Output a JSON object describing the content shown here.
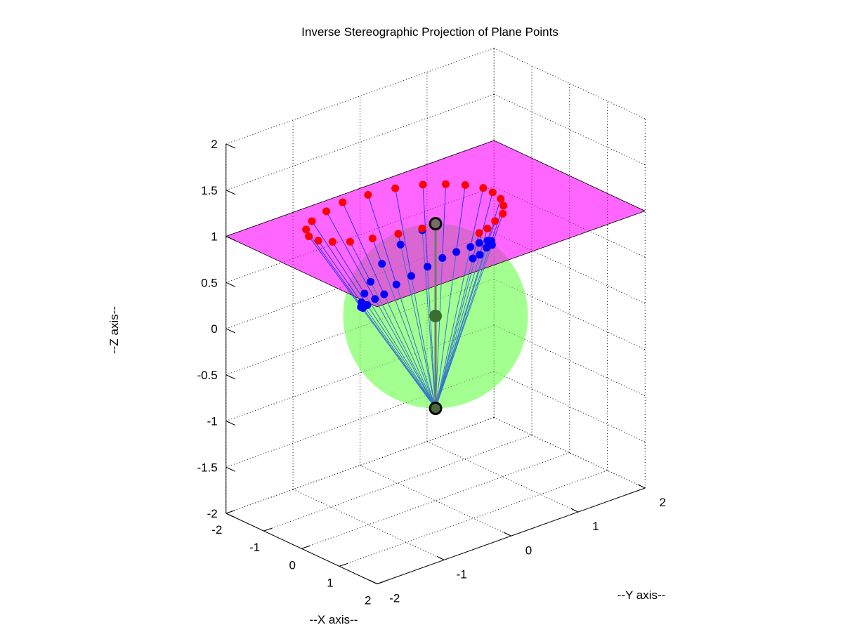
{
  "chart_data": {
    "type": "scatter",
    "projection": "3d",
    "title": "Inverse Stereographic Projection of Plane Points",
    "xlabel": "--X axis--",
    "ylabel": "--Y axis--",
    "zlabel": "--Z axis--",
    "xlim": [
      -2,
      2
    ],
    "ylim": [
      -2,
      2
    ],
    "zlim": [
      -2,
      2
    ],
    "x_ticks": [
      "-2",
      "-1",
      "0",
      "1",
      "2"
    ],
    "y_ticks": [
      "-2",
      "-1",
      "0",
      "1",
      "2"
    ],
    "z_ticks": [
      "-2",
      "-1.5",
      "-1",
      "-0.5",
      "0",
      "0.5",
      "1",
      "1.5",
      "2"
    ],
    "grid": true,
    "colors": {
      "plane": "#ff00ff",
      "sphere": "#66ff44",
      "plane_points": "#ff0000",
      "sphere_points": "#0000ff",
      "rays_to_plane": "#3333ff",
      "rays_to_pole": "#3377cc",
      "poles": "#000000",
      "center": "#3a6e2c"
    },
    "plane": {
      "z": 1,
      "x_range": [
        -2,
        2
      ],
      "y_range": [
        -2,
        2
      ]
    },
    "sphere": {
      "center": [
        0,
        0,
        0
      ],
      "radius": 1
    },
    "projection_pole": [
      0,
      0,
      -1
    ],
    "north_pole": [
      0,
      0,
      1
    ],
    "plane_points": [
      [
        0.0,
        -0.2,
        1
      ],
      [
        -0.1,
        -0.5,
        1
      ],
      [
        -0.25,
        -0.8,
        1
      ],
      [
        -0.4,
        -1.05,
        1
      ],
      [
        -0.6,
        -1.2,
        1
      ],
      [
        -0.8,
        -1.3,
        1
      ],
      [
        -1.05,
        -1.3,
        1
      ],
      [
        -1.3,
        -1.2,
        1
      ],
      [
        -1.5,
        -1.0,
        1
      ],
      [
        -1.65,
        -0.7,
        1
      ],
      [
        -1.75,
        -0.4,
        1
      ],
      [
        -1.7,
        -0.05,
        1
      ],
      [
        -1.6,
        0.3,
        1
      ],
      [
        -1.4,
        0.6,
        1
      ],
      [
        -1.15,
        0.8,
        1
      ],
      [
        -0.9,
        0.95,
        1
      ],
      [
        -0.6,
        1.05,
        1
      ],
      [
        -0.35,
        1.05,
        1
      ],
      [
        -0.05,
        1.0,
        1
      ],
      [
        0.2,
        0.9,
        1
      ],
      [
        0.45,
        0.75,
        1
      ],
      [
        0.6,
        0.55,
        1
      ],
      [
        0.75,
        0.35,
        1
      ],
      [
        0.8,
        0.2,
        1
      ]
    ]
  }
}
